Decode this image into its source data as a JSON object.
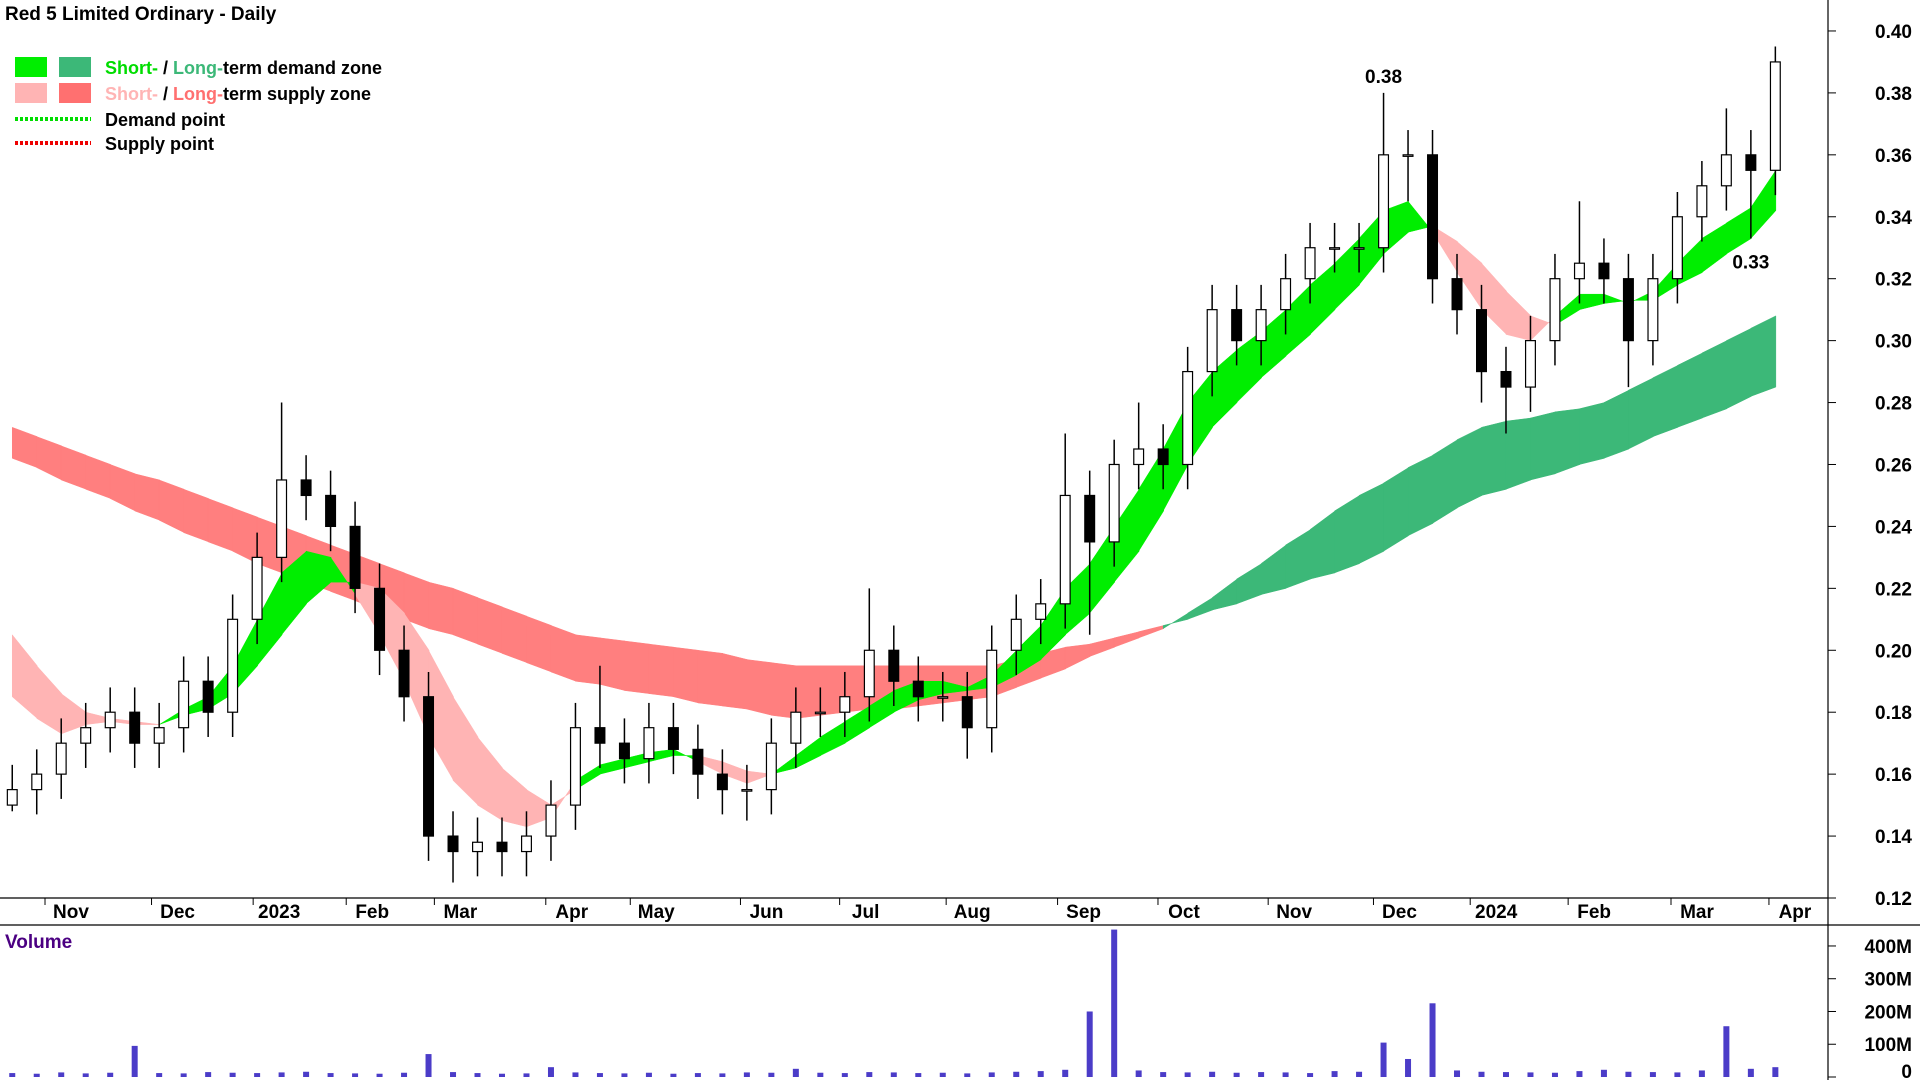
{
  "chart_data": [
    {
      "type": "candlestick",
      "title": "Red 5 Limited Ordinary - Daily",
      "legend": [
        {
          "parts": [
            "Short-",
            " / ",
            "Long-",
            "term demand zone"
          ]
        },
        {
          "parts": [
            "Short-",
            " / ",
            "Long-",
            "term supply zone"
          ]
        },
        {
          "label": "Demand point"
        },
        {
          "label": "Supply point"
        }
      ],
      "xlim": [
        -0.5,
        74.15
      ],
      "xticks": [
        {
          "value": 2.4,
          "label": "Nov"
        },
        {
          "value": 6.75,
          "label": "Dec"
        },
        {
          "value": 10.9,
          "label": "2023"
        },
        {
          "value": 14.7,
          "label": "Feb"
        },
        {
          "value": 18.3,
          "label": "Mar"
        },
        {
          "value": 22.85,
          "label": "Apr"
        },
        {
          "value": 26.3,
          "label": "May"
        },
        {
          "value": 30.8,
          "label": "Jun"
        },
        {
          "value": 34.85,
          "label": "Jul"
        },
        {
          "value": 39.2,
          "label": "Aug"
        },
        {
          "value": 43.75,
          "label": "Sep"
        },
        {
          "value": 47.85,
          "label": "Oct"
        },
        {
          "value": 52.35,
          "label": "Nov"
        },
        {
          "value": 56.65,
          "label": "Dec"
        },
        {
          "value": 60.6,
          "label": "2024"
        },
        {
          "value": 64.6,
          "label": "Feb"
        },
        {
          "value": 68.8,
          "label": "Mar"
        },
        {
          "value": 72.8,
          "label": "Apr"
        }
      ],
      "ylim": [
        0.12,
        0.41
      ],
      "yticks": [
        0.12,
        0.14,
        0.16,
        0.18,
        {
          "value": 0.2,
          "label": "0.20"
        },
        0.22,
        0.24,
        0.26,
        0.28,
        {
          "value": 0.3,
          "label": "0.30"
        },
        0.32,
        0.34,
        0.36,
        0.38,
        {
          "value": 0.4,
          "label": "0.40"
        }
      ],
      "open": [
        0.15,
        0.155,
        0.16,
        0.17,
        0.175,
        0.18,
        0.17,
        0.175,
        0.19,
        0.18,
        0.21,
        0.23,
        0.255,
        0.25,
        0.24,
        0.22,
        0.2,
        0.185,
        0.14,
        0.135,
        0.138,
        0.135,
        0.14,
        0.15,
        0.175,
        0.17,
        0.165,
        0.175,
        0.168,
        0.16,
        0.155,
        0.155,
        0.17,
        0.18,
        0.18,
        0.185,
        0.2,
        0.19,
        0.185,
        0.185,
        0.175,
        0.2,
        0.21,
        0.215,
        0.25,
        0.235,
        0.26,
        0.265,
        0.26,
        0.29,
        0.31,
        0.3,
        0.31,
        0.32,
        0.33,
        0.33,
        0.33,
        0.36,
        0.36,
        0.32,
        0.31,
        0.29,
        0.285,
        0.3,
        0.32,
        0.325,
        0.32,
        0.3,
        0.32,
        0.34,
        0.35,
        0.36,
        0.355
      ],
      "high": [
        0.163,
        0.168,
        0.178,
        0.183,
        0.188,
        0.188,
        0.183,
        0.198,
        0.198,
        0.218,
        0.238,
        0.28,
        0.263,
        0.258,
        0.248,
        0.228,
        0.208,
        0.193,
        0.148,
        0.146,
        0.146,
        0.148,
        0.158,
        0.183,
        0.195,
        0.178,
        0.183,
        0.183,
        0.176,
        0.168,
        0.163,
        0.178,
        0.188,
        0.188,
        0.193,
        0.22,
        0.208,
        0.198,
        0.193,
        0.193,
        0.208,
        0.218,
        0.223,
        0.27,
        0.258,
        0.268,
        0.28,
        0.273,
        0.298,
        0.318,
        0.318,
        0.318,
        0.328,
        0.338,
        0.338,
        0.338,
        0.38,
        0.368,
        0.368,
        0.328,
        0.318,
        0.298,
        0.308,
        0.328,
        0.345,
        0.333,
        0.328,
        0.328,
        0.348,
        0.358,
        0.375,
        0.368,
        0.395
      ],
      "low": [
        0.148,
        0.147,
        0.152,
        0.162,
        0.167,
        0.162,
        0.162,
        0.167,
        0.172,
        0.172,
        0.202,
        0.222,
        0.242,
        0.232,
        0.212,
        0.192,
        0.177,
        0.132,
        0.125,
        0.127,
        0.127,
        0.127,
        0.132,
        0.142,
        0.162,
        0.157,
        0.157,
        0.16,
        0.152,
        0.147,
        0.145,
        0.147,
        0.162,
        0.172,
        0.172,
        0.177,
        0.182,
        0.177,
        0.177,
        0.165,
        0.167,
        0.192,
        0.202,
        0.207,
        0.205,
        0.227,
        0.252,
        0.252,
        0.252,
        0.282,
        0.292,
        0.292,
        0.302,
        0.312,
        0.322,
        0.322,
        0.322,
        0.345,
        0.312,
        0.302,
        0.28,
        0.27,
        0.277,
        0.292,
        0.312,
        0.312,
        0.285,
        0.292,
        0.312,
        0.332,
        0.342,
        0.333,
        0.347
      ],
      "close": [
        0.155,
        0.16,
        0.17,
        0.175,
        0.18,
        0.17,
        0.175,
        0.19,
        0.18,
        0.21,
        0.23,
        0.255,
        0.25,
        0.24,
        0.22,
        0.2,
        0.185,
        0.14,
        0.135,
        0.138,
        0.135,
        0.14,
        0.15,
        0.175,
        0.17,
        0.165,
        0.175,
        0.168,
        0.16,
        0.155,
        0.155,
        0.17,
        0.18,
        0.18,
        0.185,
        0.2,
        0.19,
        0.185,
        0.185,
        0.175,
        0.2,
        0.21,
        0.215,
        0.25,
        0.235,
        0.26,
        0.265,
        0.26,
        0.29,
        0.31,
        0.3,
        0.31,
        0.32,
        0.33,
        0.33,
        0.33,
        0.36,
        0.36,
        0.32,
        0.31,
        0.29,
        0.285,
        0.3,
        0.32,
        0.325,
        0.32,
        0.3,
        0.32,
        0.34,
        0.35,
        0.36,
        0.355,
        0.39
      ],
      "short_zone": {
        "demand_color": "#00ee00",
        "supply_color": "#ffb4b4",
        "fast": [
          0.185,
          0.178,
          0.173,
          0.176,
          0.177,
          0.176,
          0.176,
          0.181,
          0.185,
          0.195,
          0.21,
          0.225,
          0.232,
          0.23,
          0.218,
          0.205,
          0.19,
          0.172,
          0.158,
          0.15,
          0.145,
          0.143,
          0.146,
          0.158,
          0.163,
          0.165,
          0.167,
          0.168,
          0.164,
          0.16,
          0.157,
          0.16,
          0.166,
          0.172,
          0.177,
          0.182,
          0.187,
          0.19,
          0.19,
          0.188,
          0.192,
          0.2,
          0.208,
          0.22,
          0.228,
          0.24,
          0.252,
          0.265,
          0.28,
          0.29,
          0.297,
          0.303,
          0.31,
          0.318,
          0.325,
          0.333,
          0.342,
          0.345,
          0.335,
          0.322,
          0.31,
          0.302,
          0.3,
          0.308,
          0.315,
          0.315,
          0.312,
          0.316,
          0.325,
          0.333,
          0.338,
          0.343,
          0.355
        ],
        "slow": [
          0.205,
          0.195,
          0.186,
          0.18,
          0.178,
          0.177,
          0.176,
          0.179,
          0.181,
          0.186,
          0.195,
          0.205,
          0.215,
          0.222,
          0.222,
          0.22,
          0.212,
          0.2,
          0.185,
          0.172,
          0.162,
          0.155,
          0.15,
          0.155,
          0.16,
          0.162,
          0.164,
          0.166,
          0.166,
          0.164,
          0.161,
          0.16,
          0.162,
          0.166,
          0.17,
          0.175,
          0.18,
          0.184,
          0.186,
          0.187,
          0.188,
          0.192,
          0.197,
          0.205,
          0.212,
          0.222,
          0.232,
          0.245,
          0.26,
          0.272,
          0.28,
          0.288,
          0.295,
          0.302,
          0.31,
          0.318,
          0.328,
          0.335,
          0.337,
          0.332,
          0.325,
          0.316,
          0.308,
          0.305,
          0.31,
          0.312,
          0.313,
          0.313,
          0.318,
          0.322,
          0.328,
          0.333,
          0.342
        ]
      },
      "long_zone": {
        "demand_color": "#3cb878",
        "supply_color": "#ff7f7f",
        "fast": [
          0.262,
          0.259,
          0.255,
          0.252,
          0.249,
          0.245,
          0.242,
          0.238,
          0.235,
          0.232,
          0.228,
          0.225,
          0.222,
          0.219,
          0.216,
          0.213,
          0.21,
          0.207,
          0.205,
          0.202,
          0.199,
          0.196,
          0.193,
          0.19,
          0.189,
          0.187,
          0.186,
          0.185,
          0.183,
          0.182,
          0.181,
          0.179,
          0.178,
          0.179,
          0.18,
          0.181,
          0.181,
          0.182,
          0.183,
          0.184,
          0.185,
          0.188,
          0.191,
          0.194,
          0.198,
          0.201,
          0.204,
          0.207,
          0.212,
          0.217,
          0.223,
          0.228,
          0.234,
          0.239,
          0.245,
          0.25,
          0.254,
          0.259,
          0.263,
          0.268,
          0.272,
          0.274,
          0.275,
          0.277,
          0.278,
          0.28,
          0.284,
          0.288,
          0.292,
          0.296,
          0.3,
          0.304,
          0.308
        ],
        "slow": [
          0.272,
          0.269,
          0.266,
          0.263,
          0.26,
          0.257,
          0.255,
          0.252,
          0.249,
          0.246,
          0.243,
          0.24,
          0.237,
          0.234,
          0.231,
          0.228,
          0.225,
          0.222,
          0.22,
          0.217,
          0.214,
          0.211,
          0.208,
          0.205,
          0.204,
          0.203,
          0.202,
          0.201,
          0.2,
          0.199,
          0.197,
          0.196,
          0.195,
          0.195,
          0.195,
          0.195,
          0.195,
          0.195,
          0.195,
          0.195,
          0.195,
          0.197,
          0.199,
          0.201,
          0.202,
          0.204,
          0.206,
          0.208,
          0.21,
          0.213,
          0.215,
          0.218,
          0.22,
          0.223,
          0.225,
          0.228,
          0.232,
          0.237,
          0.241,
          0.246,
          0.25,
          0.252,
          0.255,
          0.257,
          0.26,
          0.262,
          0.265,
          0.269,
          0.272,
          0.275,
          0.278,
          0.282,
          0.285
        ]
      },
      "annotations": [
        {
          "text": "0.38",
          "x": 56,
          "y": 0.38,
          "position": "above"
        },
        {
          "text": "0.33",
          "x": 71,
          "y": 0.333,
          "position": "below"
        }
      ]
    },
    {
      "type": "bar",
      "title": "Volume",
      "color": "#4b3cc8",
      "xlim": [
        -0.5,
        74.15
      ],
      "ylim": [
        0,
        464000000
      ],
      "yticks": [
        0,
        {
          "value": 100000000,
          "label": "100M"
        },
        {
          "value": 200000000,
          "label": "200M"
        },
        {
          "value": 300000000,
          "label": "300M"
        },
        {
          "value": 400000000,
          "label": "400M"
        }
      ],
      "values": [
        12000000,
        10000000,
        14000000,
        11000000,
        13000000,
        95000000,
        12000000,
        11000000,
        15000000,
        13000000,
        12000000,
        14000000,
        16000000,
        12000000,
        11000000,
        10000000,
        13000000,
        70000000,
        15000000,
        12000000,
        10000000,
        11000000,
        30000000,
        14000000,
        12000000,
        11000000,
        13000000,
        10000000,
        12000000,
        11000000,
        14000000,
        13000000,
        25000000,
        13000000,
        12000000,
        15000000,
        14000000,
        12000000,
        13000000,
        11000000,
        14000000,
        16000000,
        18000000,
        22000000,
        200000000,
        450000000,
        20000000,
        15000000,
        14000000,
        16000000,
        13000000,
        15000000,
        14000000,
        12000000,
        18000000,
        16000000,
        105000000,
        55000000,
        225000000,
        20000000,
        16000000,
        15000000,
        14000000,
        13000000,
        18000000,
        22000000,
        16000000,
        15000000,
        14000000,
        20000000,
        155000000,
        25000000,
        30000000
      ]
    }
  ]
}
